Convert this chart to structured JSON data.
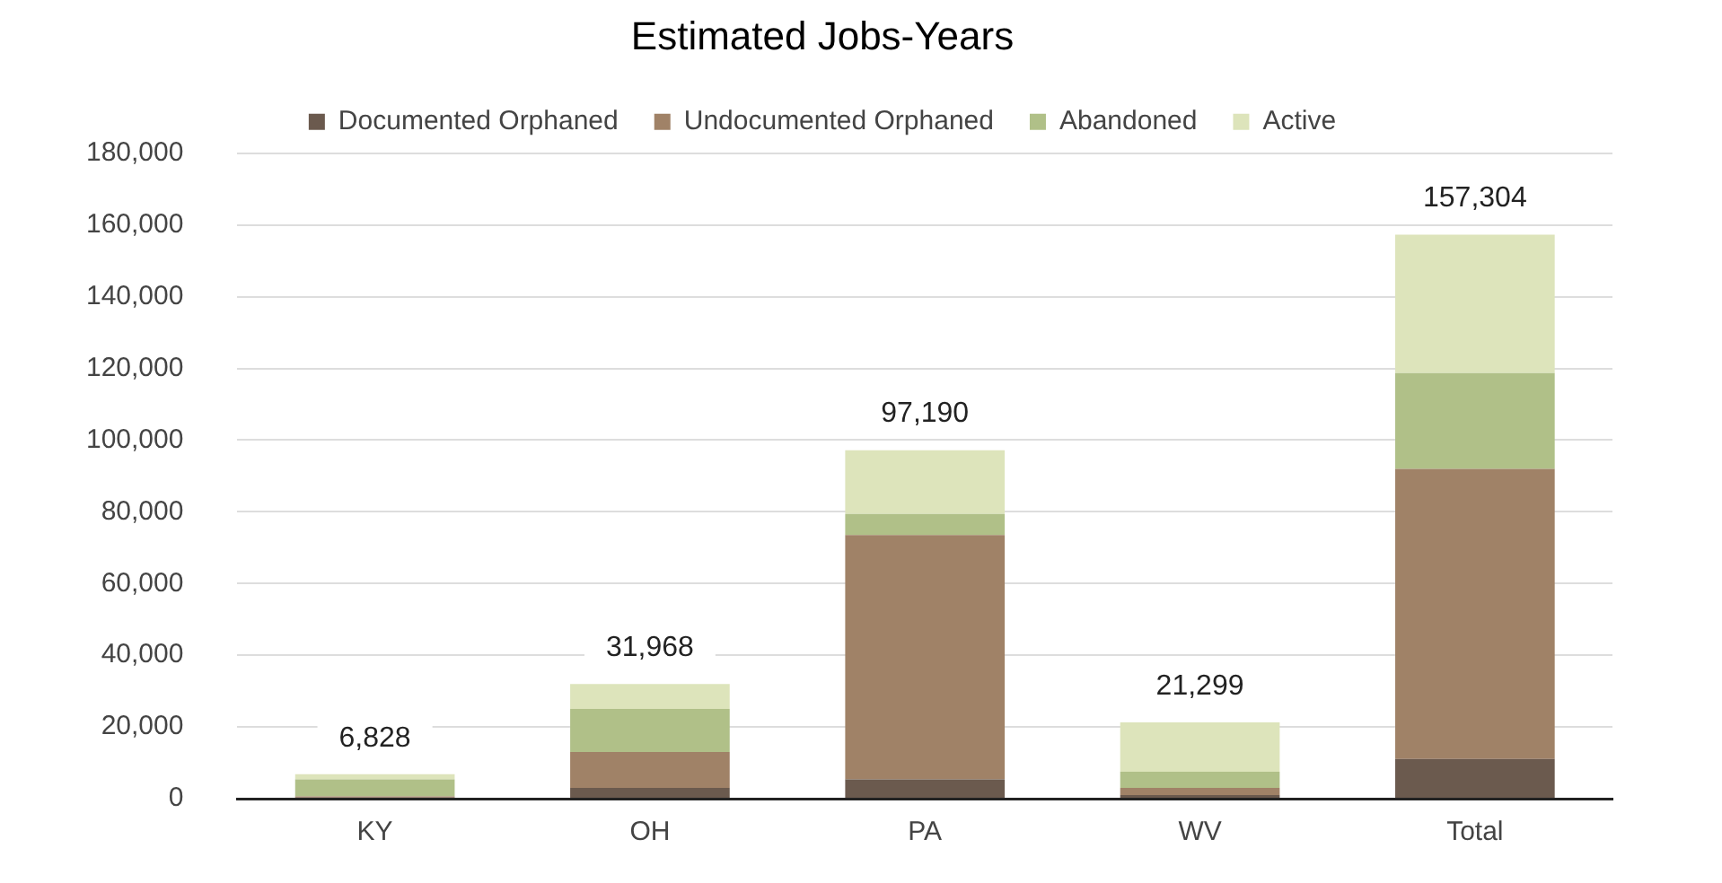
{
  "chart_data": {
    "type": "bar",
    "title": "Estimated Jobs-Years",
    "stacked": true,
    "categories": [
      "KY",
      "OH",
      "PA",
      "WV",
      "Total"
    ],
    "series": [
      {
        "name": "Documented Orphaned",
        "color": "#6b5a4e",
        "values": [
          300,
          3000,
          5400,
          1000,
          11100
        ]
      },
      {
        "name": "Undocumented Orphaned",
        "color": "#a08267",
        "values": [
          300,
          10000,
          68100,
          2000,
          80900
        ]
      },
      {
        "name": "Abandoned",
        "color": "#b0c088",
        "values": [
          4800,
          12000,
          5900,
          4500,
          26700
        ]
      },
      {
        "name": "Active",
        "color": "#dde4bb",
        "values": [
          1428,
          6968,
          17790,
          13799,
          38604
        ]
      }
    ],
    "totals": [
      "6,828",
      "31,968",
      "97,190",
      "21,299",
      "157,304"
    ],
    "ylim": [
      0,
      180000
    ],
    "yticks": [
      0,
      {
        "value": 20000,
        "label": "20,000"
      },
      {
        "value": 40000,
        "label": "40,000"
      },
      {
        "value": 60000,
        "label": "60,000"
      },
      {
        "value": 80000,
        "label": "80,000"
      },
      {
        "value": 100000,
        "label": "100,000"
      },
      {
        "value": 120000,
        "label": "120,000"
      },
      {
        "value": 140000,
        "label": "140,000"
      },
      {
        "value": 160000,
        "label": "160,000"
      },
      {
        "value": 180000,
        "label": "180,000"
      }
    ],
    "grid": "y",
    "legend": "top"
  }
}
